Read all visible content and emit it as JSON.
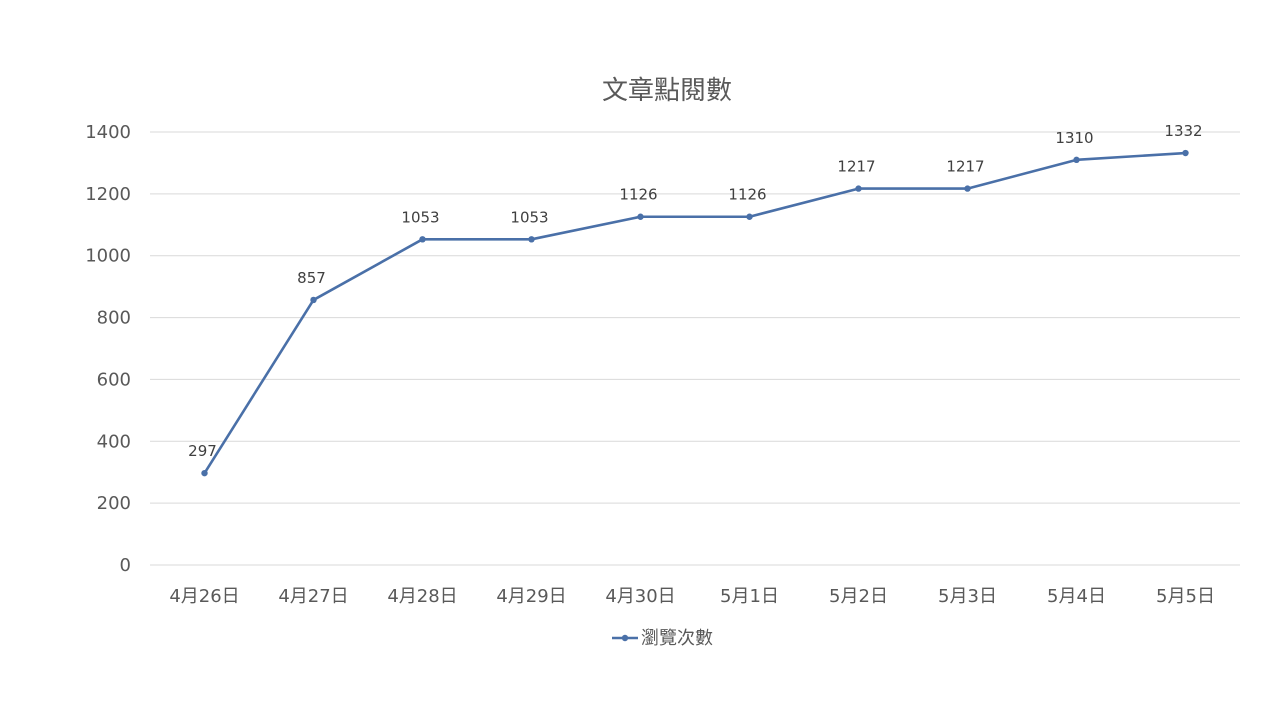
{
  "chart_data": {
    "type": "line",
    "title": "文章點閱數",
    "categories": [
      "4月26日",
      "4月27日",
      "4月28日",
      "4月29日",
      "4月30日",
      "5月1日",
      "5月2日",
      "5月3日",
      "5月4日",
      "5月5日"
    ],
    "series": [
      {
        "name": "瀏覽次數",
        "values": [
          297,
          857,
          1053,
          1053,
          1126,
          1126,
          1217,
          1217,
          1310,
          1332
        ],
        "color": "#4a70a8"
      }
    ],
    "yticks": [
      "0",
      "200",
      "400",
      "600",
      "800",
      "1000",
      "1200",
      "1400"
    ],
    "ylim": [
      0,
      1400
    ],
    "grid": true,
    "legend_position": "bottom",
    "data_labels": true
  }
}
